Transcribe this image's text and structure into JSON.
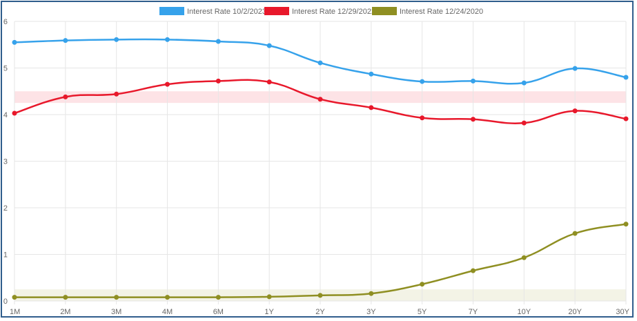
{
  "chart_data": {
    "type": "line",
    "categories": [
      "1M",
      "2M",
      "3M",
      "4M",
      "6M",
      "1Y",
      "2Y",
      "3Y",
      "5Y",
      "7Y",
      "10Y",
      "20Y",
      "30Y"
    ],
    "ylim": [
      0,
      6
    ],
    "yticks": [
      "0",
      "1",
      "2",
      "3",
      "4",
      "5",
      "6"
    ],
    "grid": true,
    "legend_position": "top-center",
    "series": [
      {
        "name": "Interest Rate 10/2/2023",
        "color": "#36a2eb",
        "values": [
          5.55,
          5.59,
          5.61,
          5.61,
          5.57,
          5.48,
          5.11,
          4.87,
          4.71,
          4.72,
          4.68,
          4.99,
          4.8
        ]
      },
      {
        "name": "Interest Rate 12/29/2022",
        "color": "#e8182b",
        "values": [
          4.03,
          4.38,
          4.44,
          4.65,
          4.72,
          4.7,
          4.33,
          4.15,
          3.93,
          3.9,
          3.82,
          4.08,
          3.91
        ]
      },
      {
        "name": "Interest Rate 12/24/2020",
        "color": "#8f8f22",
        "values": [
          0.08,
          0.08,
          0.08,
          0.08,
          0.08,
          0.09,
          0.12,
          0.16,
          0.36,
          0.65,
          0.93,
          1.45,
          1.65
        ]
      }
    ],
    "bands": [
      {
        "from": 4.25,
        "to": 4.5,
        "color": "#fde3e6"
      },
      {
        "from": 0.0,
        "to": 0.25,
        "color": "#f3f3e6"
      }
    ]
  }
}
